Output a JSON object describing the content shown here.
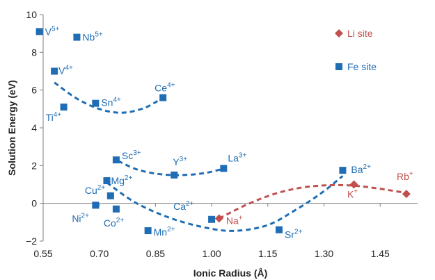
{
  "chart_data": {
    "type": "scatter",
    "xlabel": "Ionic Radius (Å)",
    "ylabel": "Solution Energy (eV)",
    "xlim": [
      0.55,
      1.55
    ],
    "ylim": [
      -2,
      10
    ],
    "xticks": [
      "0.55",
      "0.70",
      "0.85",
      "1.00",
      "1.15",
      "1.30",
      "1.45"
    ],
    "xtick_values": [
      0.55,
      0.7,
      0.85,
      1.0,
      1.15,
      1.3,
      1.45
    ],
    "yticks": [
      "−2",
      "0",
      "2",
      "4",
      "6",
      "8",
      "10"
    ],
    "ytick_values": [
      -2,
      0,
      2,
      4,
      6,
      8,
      10
    ],
    "grid": false,
    "legend_position": "top-right",
    "series": [
      {
        "name": "Li site",
        "marker": "diamond",
        "color": "#c0504d",
        "points": [
          {
            "label": "Na",
            "charge": "+",
            "x": 1.02,
            "y": -0.8
          },
          {
            "label": "K",
            "charge": "+",
            "x": 1.38,
            "y": 1.0
          },
          {
            "label": "Rb",
            "charge": "+",
            "x": 1.52,
            "y": 0.5
          }
        ]
      },
      {
        "name": "Fe site",
        "marker": "square",
        "color": "#1f6db4",
        "points": [
          {
            "label": "V",
            "charge": "5+",
            "x": 0.54,
            "y": 9.1
          },
          {
            "label": "Nb",
            "charge": "5+",
            "x": 0.64,
            "y": 8.8
          },
          {
            "label": "V",
            "charge": "4+",
            "x": 0.58,
            "y": 7.0
          },
          {
            "label": "Sn",
            "charge": "4+",
            "x": 0.69,
            "y": 5.3
          },
          {
            "label": "Ti",
            "charge": "4+",
            "x": 0.605,
            "y": 5.1
          },
          {
            "label": "Ce",
            "charge": "4+",
            "x": 0.87,
            "y": 5.6
          },
          {
            "label": "Sc",
            "charge": "3+",
            "x": 0.745,
            "y": 2.3
          },
          {
            "label": "Y",
            "charge": "3+",
            "x": 0.9,
            "y": 1.5
          },
          {
            "label": "La",
            "charge": "3+",
            "x": 1.032,
            "y": 1.85
          },
          {
            "label": "Mg",
            "charge": "2+",
            "x": 0.72,
            "y": 1.2
          },
          {
            "label": "Cu",
            "charge": "2+",
            "x": 0.73,
            "y": 0.4
          },
          {
            "label": "Ni",
            "charge": "2+",
            "x": 0.69,
            "y": -0.1
          },
          {
            "label": "Co",
            "charge": "2+",
            "x": 0.745,
            "y": -0.3
          },
          {
            "label": "Mn",
            "charge": "2+",
            "x": 0.83,
            "y": -1.45
          },
          {
            "label": "Ca",
            "charge": "2+",
            "x": 1.0,
            "y": -0.85
          },
          {
            "label": "Sr",
            "charge": "2+",
            "x": 1.18,
            "y": -1.4
          },
          {
            "label": "Ba",
            "charge": "2+",
            "x": 1.35,
            "y": 1.75
          }
        ]
      }
    ],
    "trend_curves": [
      {
        "color": "#1f6db4",
        "x": [
          0.58,
          0.64,
          0.7,
          0.76,
          0.82,
          0.87
        ],
        "y": [
          6.4,
          5.55,
          5.0,
          4.8,
          5.05,
          5.6
        ]
      },
      {
        "color": "#1f6db4",
        "x": [
          0.75,
          0.8,
          0.86,
          0.92,
          0.98,
          1.035
        ],
        "y": [
          2.25,
          1.8,
          1.55,
          1.5,
          1.6,
          1.85
        ]
      },
      {
        "color": "#1f6db4",
        "x": [
          0.72,
          0.8,
          0.9,
          1.0,
          1.07,
          1.15,
          1.22,
          1.29,
          1.35
        ],
        "y": [
          1.1,
          0.0,
          -0.85,
          -1.35,
          -1.45,
          -1.15,
          -0.4,
          0.5,
          1.45
        ]
      },
      {
        "color": "#c0504d",
        "x": [
          1.02,
          1.09,
          1.16,
          1.23,
          1.3,
          1.37,
          1.44,
          1.52
        ],
        "y": [
          -0.8,
          -0.1,
          0.45,
          0.8,
          0.95,
          0.95,
          0.8,
          0.55
        ]
      }
    ]
  }
}
